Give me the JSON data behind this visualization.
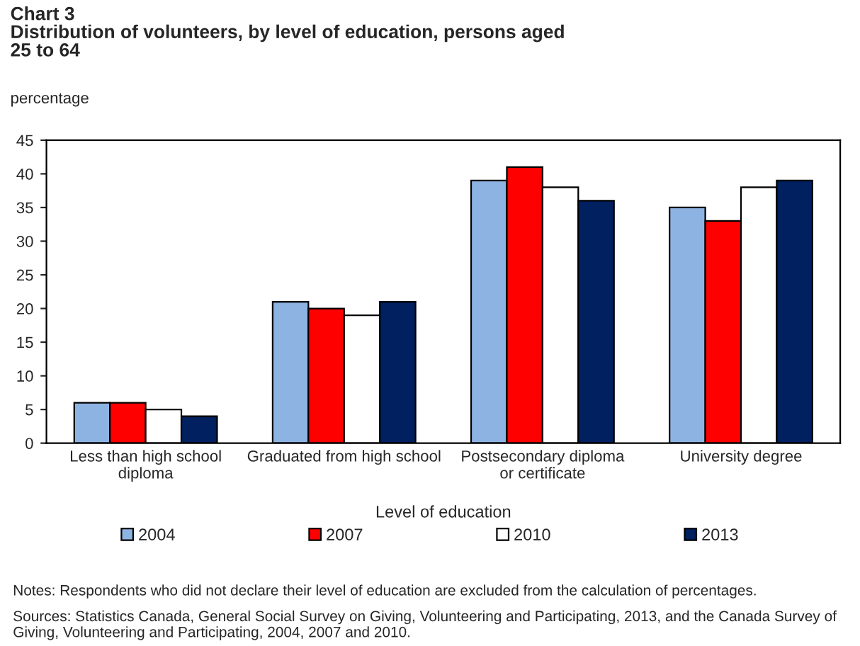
{
  "chart_data": {
    "type": "bar",
    "title": "Chart 3\nDistribution of volunteers, by level of education, persons aged\n25 to 64",
    "ylabel": "percentage",
    "xlabel": "Level of education",
    "categories": [
      "Less than high school\ndiploma",
      "Graduated from high school",
      "Postsecondary diploma\nor certificate",
      "University degree"
    ],
    "series": [
      {
        "name": "2004",
        "color": "#8db3e2",
        "values": [
          6,
          21,
          39,
          35
        ]
      },
      {
        "name": "2007",
        "color": "#ff0000",
        "values": [
          6,
          20,
          41,
          33
        ]
      },
      {
        "name": "2010",
        "color": "#ffffff",
        "values": [
          5,
          19,
          38,
          38
        ]
      },
      {
        "name": "2013",
        "color": "#002060",
        "values": [
          4,
          21,
          36,
          39
        ]
      }
    ],
    "ylim": [
      0,
      45
    ],
    "yticks": [
      0,
      5,
      10,
      15,
      20,
      25,
      30,
      35,
      40,
      45
    ],
    "grid": false,
    "legend": "bottom",
    "annotations": [
      "Notes: Respondents who did not declare their level of education are excluded from the calculation of percentages.",
      "Sources: Statistics Canada, General Social Survey on Giving, Volunteering and Participating, 2013, and the Canada Survey of Giving, Volunteering and Participating, 2004, 2007 and 2010."
    ]
  }
}
